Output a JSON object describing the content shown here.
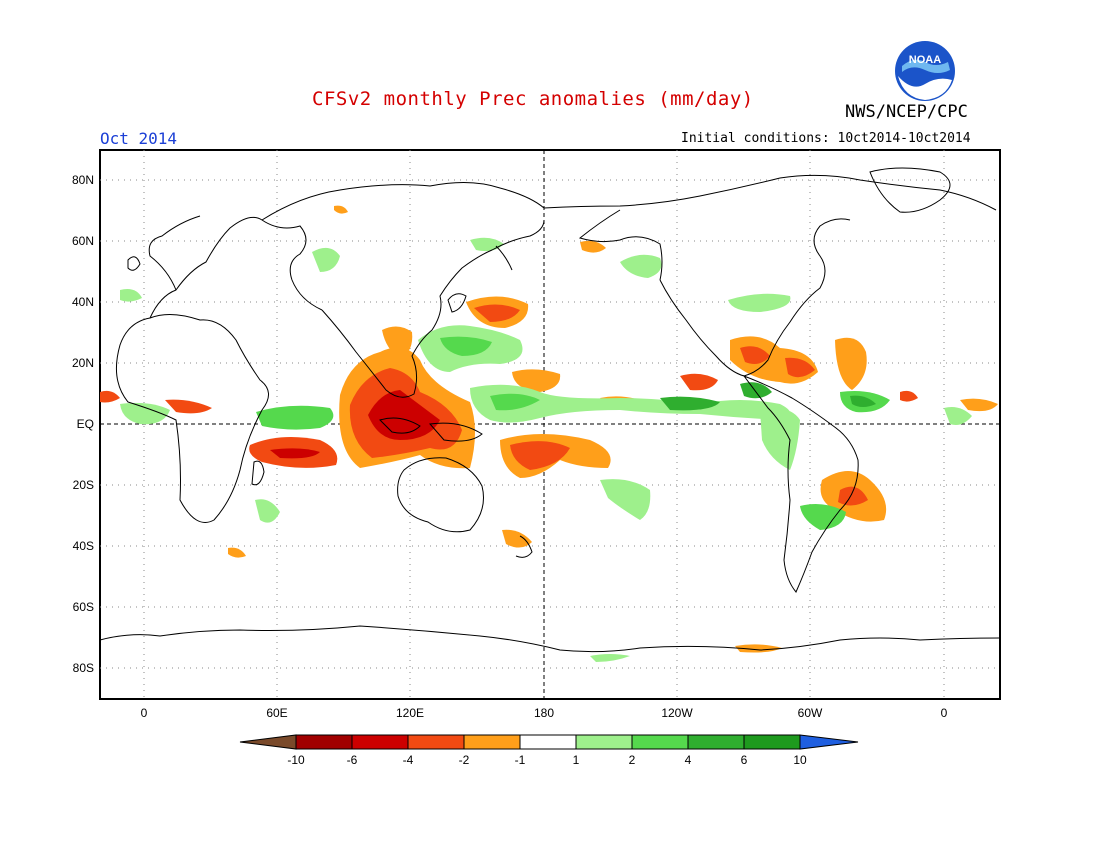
{
  "header": {
    "title": "CFSv2 monthly Prec anomalies (mm/day)",
    "agency": "NWS/NCEP/CPC",
    "month": "Oct 2014",
    "initial_conditions": "Initial conditions: 10ct2014-10ct2014",
    "logo_text": "NOAA"
  },
  "axes": {
    "lat_labels": [
      "80N",
      "60N",
      "40N",
      "20N",
      "EQ",
      "20S",
      "40S",
      "60S",
      "80S"
    ],
    "lon_labels": [
      "0",
      "60E",
      "120E",
      "180",
      "120W",
      "60W",
      "0"
    ]
  },
  "colorbar": {
    "labels": [
      "-10",
      "-6",
      "-4",
      "-2",
      "-1",
      "1",
      "2",
      "4",
      "6",
      "10"
    ],
    "colors": [
      "#7a4a2a",
      "#a10000",
      "#cc0000",
      "#f24a12",
      "#ff9f1a",
      "#ffffff",
      "#9ef08c",
      "#55d94d",
      "#2fae2f",
      "#1e9a1e",
      "#1f5fe0"
    ]
  },
  "palette": {
    "wet_light": "#9ef08c",
    "wet_mid": "#55d94d",
    "wet_dark": "#2fae2f",
    "dry_light": "#ff9f1a",
    "dry_mid": "#f24a12",
    "dry_dark": "#cc0000"
  }
}
